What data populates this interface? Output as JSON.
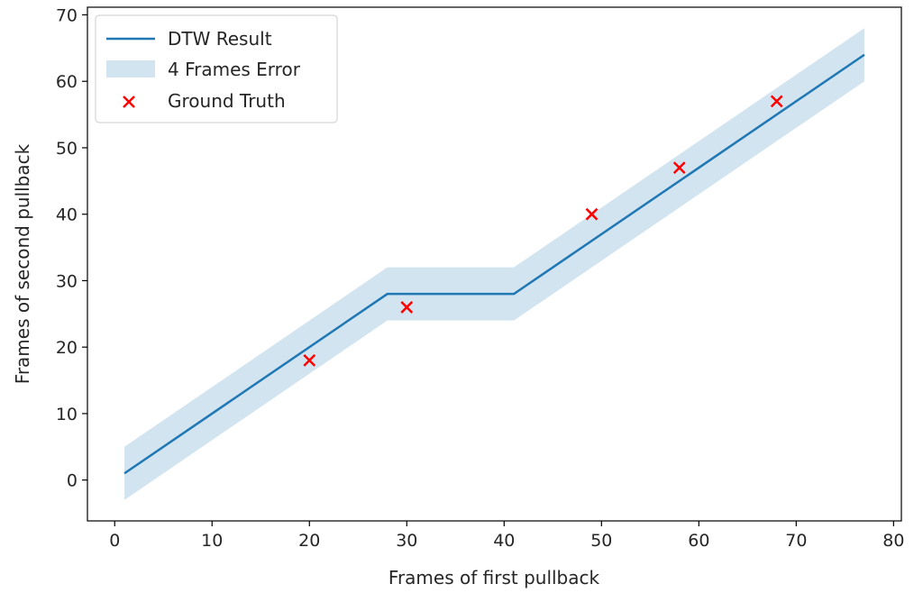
{
  "chart_data": {
    "type": "line",
    "xlabel": "Frames of first pullback",
    "ylabel": "Frames of second pullback",
    "xlim": [
      -2.8,
      80.8
    ],
    "ylim": [
      -6.15,
      71.15
    ],
    "x_ticks": [
      0,
      10,
      20,
      30,
      40,
      50,
      60,
      70,
      80
    ],
    "y_ticks": [
      0,
      10,
      20,
      30,
      40,
      50,
      60,
      70
    ],
    "grid": false,
    "legend_position": "top-left",
    "series": [
      {
        "name": "DTW Result",
        "kind": "line",
        "color": "#1f77b4",
        "x": [
          1,
          28,
          41,
          77
        ],
        "y": [
          1,
          28,
          28,
          64
        ]
      },
      {
        "name": "4 Frames Error",
        "kind": "band",
        "color": "#1f77b4",
        "opacity": 0.2,
        "x": [
          1,
          28,
          41,
          77
        ],
        "lower": [
          -3,
          24,
          24,
          60
        ],
        "upper": [
          5,
          32,
          32,
          68
        ]
      },
      {
        "name": "Ground Truth",
        "kind": "scatter",
        "marker": "x",
        "color": "#ff0000",
        "x": [
          20,
          30,
          49,
          58,
          68
        ],
        "y": [
          18,
          26,
          40,
          47,
          57
        ]
      }
    ]
  }
}
